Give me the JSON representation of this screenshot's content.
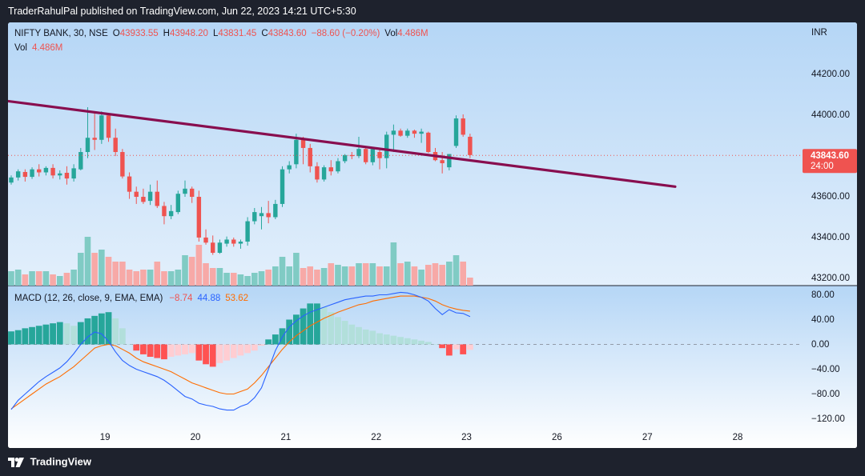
{
  "header": {
    "published_line": "TraderRahulPal published on TradingView.com, Jun 22, 2023 14:21 UTC+5:30"
  },
  "legend": {
    "symbol": "NIFTY BANK, 30, NSE",
    "o_label": "O",
    "o_value": "43933.55",
    "h_label": "H",
    "h_value": "43948.20",
    "l_label": "L",
    "l_value": "43831.45",
    "c_label": "C",
    "c_value": "43843.60",
    "change": "−88.60 (−0.20%)",
    "vol_label": "Vol",
    "vol_value": "4.486M",
    "vol_row_label": "Vol",
    "vol_row_value": "4.486M",
    "currency": "INR"
  },
  "macd_legend": {
    "label": "MACD (12, 26, close, 9, EMA, EMA)",
    "hist_value": "−8.74",
    "macd_value": "44.88",
    "signal_value": "53.62"
  },
  "price_axis": {
    "ticks": [
      "44200.00",
      "44000.00",
      "43600.00",
      "43400.00",
      "43200.00"
    ],
    "last_price": "43843.60",
    "countdown": "24:00"
  },
  "macd_axis": {
    "ticks": [
      "80.00",
      "40.00",
      "0.00",
      "−40.00",
      "−80.00",
      "−120.00"
    ]
  },
  "time_axis": {
    "ticks": [
      "19",
      "20",
      "21",
      "22",
      "23",
      "26",
      "27",
      "28"
    ]
  },
  "colors": {
    "up": "#26a69a",
    "down": "#ef5350",
    "trendline": "#880e4f",
    "macd_line": "#2962ff",
    "signal_line": "#ff6d00",
    "bg_top": "#b2d4f5",
    "bg_bottom": "#ffffff"
  },
  "footer": {
    "brand": "TradingView"
  },
  "chart_data": {
    "type": "candlestick",
    "symbol": "NIFTY BANK",
    "interval": "30",
    "exchange": "NSE",
    "currency": "INR",
    "ylim": [
      43180,
      44300
    ],
    "last_price": 43843.6,
    "day_labels": [
      {
        "label": "19",
        "bar": 13.5
      },
      {
        "label": "20",
        "bar": 26.5
      },
      {
        "label": "21",
        "bar": 39.5
      },
      {
        "label": "22",
        "bar": 52.5
      },
      {
        "label": "23",
        "bar": 65.5
      },
      {
        "label": "26",
        "bar": 78.5
      },
      {
        "label": "27",
        "bar": 91.5
      },
      {
        "label": "28",
        "bar": 104.5
      }
    ],
    "candles": [
      {
        "o": 43710,
        "h": 43745,
        "l": 43700,
        "c": 43735
      },
      {
        "o": 43735,
        "h": 43775,
        "l": 43720,
        "c": 43765
      },
      {
        "o": 43762,
        "h": 43775,
        "l": 43715,
        "c": 43738
      },
      {
        "o": 43738,
        "h": 43785,
        "l": 43728,
        "c": 43775
      },
      {
        "o": 43775,
        "h": 43800,
        "l": 43740,
        "c": 43760
      },
      {
        "o": 43760,
        "h": 43790,
        "l": 43745,
        "c": 43782
      },
      {
        "o": 43782,
        "h": 43800,
        "l": 43730,
        "c": 43745
      },
      {
        "o": 43745,
        "h": 43770,
        "l": 43725,
        "c": 43755
      },
      {
        "o": 43758,
        "h": 43790,
        "l": 43700,
        "c": 43730
      },
      {
        "o": 43730,
        "h": 43800,
        "l": 43715,
        "c": 43780
      },
      {
        "o": 43775,
        "h": 43880,
        "l": 43770,
        "c": 43860
      },
      {
        "o": 43860,
        "h": 44080,
        "l": 43830,
        "c": 43930
      },
      {
        "o": 43930,
        "h": 44050,
        "l": 43870,
        "c": 43920
      },
      {
        "o": 43920,
        "h": 44060,
        "l": 43900,
        "c": 44040
      },
      {
        "o": 44040,
        "h": 44045,
        "l": 43910,
        "c": 43930
      },
      {
        "o": 43930,
        "h": 43975,
        "l": 43840,
        "c": 43860
      },
      {
        "o": 43860,
        "h": 43875,
        "l": 43730,
        "c": 43740
      },
      {
        "o": 43740,
        "h": 43760,
        "l": 43630,
        "c": 43665
      },
      {
        "o": 43665,
        "h": 43690,
        "l": 43605,
        "c": 43640
      },
      {
        "o": 43640,
        "h": 43680,
        "l": 43605,
        "c": 43615
      },
      {
        "o": 43620,
        "h": 43700,
        "l": 43600,
        "c": 43665
      },
      {
        "o": 43665,
        "h": 43720,
        "l": 43585,
        "c": 43595
      },
      {
        "o": 43595,
        "h": 43615,
        "l": 43505,
        "c": 43545
      },
      {
        "o": 43545,
        "h": 43600,
        "l": 43530,
        "c": 43570
      },
      {
        "o": 43565,
        "h": 43670,
        "l": 43555,
        "c": 43655
      },
      {
        "o": 43655,
        "h": 43720,
        "l": 43640,
        "c": 43680
      },
      {
        "o": 43680,
        "h": 43690,
        "l": 43610,
        "c": 43640
      },
      {
        "o": 43640,
        "h": 43670,
        "l": 43420,
        "c": 43440
      },
      {
        "o": 43440,
        "h": 43480,
        "l": 43405,
        "c": 43415
      },
      {
        "o": 43415,
        "h": 43450,
        "l": 43355,
        "c": 43365
      },
      {
        "o": 43365,
        "h": 43430,
        "l": 43360,
        "c": 43415
      },
      {
        "o": 43410,
        "h": 43445,
        "l": 43395,
        "c": 43430
      },
      {
        "o": 43430,
        "h": 43440,
        "l": 43395,
        "c": 43410
      },
      {
        "o": 43410,
        "h": 43430,
        "l": 43385,
        "c": 43420
      },
      {
        "o": 43420,
        "h": 43540,
        "l": 43400,
        "c": 43520
      },
      {
        "o": 43520,
        "h": 43585,
        "l": 43505,
        "c": 43565
      },
      {
        "o": 43545,
        "h": 43590,
        "l": 43480,
        "c": 43560
      },
      {
        "o": 43560,
        "h": 43620,
        "l": 43510,
        "c": 43540
      },
      {
        "o": 43540,
        "h": 43625,
        "l": 43530,
        "c": 43605
      },
      {
        "o": 43605,
        "h": 43790,
        "l": 43590,
        "c": 43775
      },
      {
        "o": 43775,
        "h": 43815,
        "l": 43755,
        "c": 43795
      },
      {
        "o": 43800,
        "h": 43950,
        "l": 43780,
        "c": 43920
      },
      {
        "o": 43920,
        "h": 43935,
        "l": 43800,
        "c": 43880
      },
      {
        "o": 43880,
        "h": 43900,
        "l": 43760,
        "c": 43790
      },
      {
        "o": 43790,
        "h": 43810,
        "l": 43710,
        "c": 43725
      },
      {
        "o": 43725,
        "h": 43795,
        "l": 43715,
        "c": 43785
      },
      {
        "o": 43785,
        "h": 43820,
        "l": 43745,
        "c": 43765
      },
      {
        "o": 43765,
        "h": 43830,
        "l": 43755,
        "c": 43815
      },
      {
        "o": 43815,
        "h": 43850,
        "l": 43805,
        "c": 43845
      },
      {
        "o": 43845,
        "h": 43860,
        "l": 43825,
        "c": 43840
      },
      {
        "o": 43840,
        "h": 43935,
        "l": 43830,
        "c": 43875
      },
      {
        "o": 43875,
        "h": 43880,
        "l": 43800,
        "c": 43810
      },
      {
        "o": 43810,
        "h": 43880,
        "l": 43795,
        "c": 43875
      },
      {
        "o": 43860,
        "h": 43880,
        "l": 43775,
        "c": 43830
      },
      {
        "o": 43830,
        "h": 43960,
        "l": 43780,
        "c": 43945
      },
      {
        "o": 43945,
        "h": 43995,
        "l": 43860,
        "c": 43965
      },
      {
        "o": 43965,
        "h": 43975,
        "l": 43935,
        "c": 43940
      },
      {
        "o": 43940,
        "h": 43975,
        "l": 43930,
        "c": 43965
      },
      {
        "o": 43965,
        "h": 43970,
        "l": 43930,
        "c": 43950
      },
      {
        "o": 43950,
        "h": 43975,
        "l": 43905,
        "c": 43960
      },
      {
        "o": 43955,
        "h": 43960,
        "l": 43855,
        "c": 43860
      },
      {
        "o": 43860,
        "h": 43880,
        "l": 43815,
        "c": 43820
      },
      {
        "o": 43820,
        "h": 43860,
        "l": 43755,
        "c": 43805
      },
      {
        "o": 43785,
        "h": 43850,
        "l": 43770,
        "c": 43850
      },
      {
        "o": 43890,
        "h": 44040,
        "l": 43880,
        "c": 44025
      },
      {
        "o": 44025,
        "h": 44045,
        "l": 43935,
        "c": 43945
      },
      {
        "o": 43935,
        "h": 43950,
        "l": 43830,
        "c": 43845
      }
    ],
    "volume": [
      0.18,
      0.2,
      0.14,
      0.18,
      0.18,
      0.18,
      0.14,
      0.12,
      0.16,
      0.2,
      0.41,
      0.61,
      0.41,
      0.45,
      0.36,
      0.3,
      0.3,
      0.2,
      0.18,
      0.2,
      0.2,
      0.3,
      0.18,
      0.18,
      0.2,
      0.38,
      0.36,
      0.51,
      0.28,
      0.22,
      0.22,
      0.16,
      0.16,
      0.14,
      0.12,
      0.16,
      0.18,
      0.2,
      0.24,
      0.36,
      0.24,
      0.41,
      0.22,
      0.24,
      0.2,
      0.22,
      0.28,
      0.26,
      0.24,
      0.24,
      0.28,
      0.28,
      0.28,
      0.24,
      0.24,
      0.54,
      0.28,
      0.3,
      0.24,
      0.2,
      0.26,
      0.28,
      0.26,
      0.3,
      0.38,
      0.3,
      0.1
    ],
    "trendline": [
      {
        "bar": -0.5,
        "price": 44110
      },
      {
        "bar": 95.5,
        "price": 43690
      }
    ],
    "macd": {
      "params": "12, 26, close, 9, EMA, EMA",
      "ylim": [
        -140,
        90
      ],
      "histogram": [
        21,
        23,
        26,
        28,
        30,
        32,
        34,
        36,
        34,
        30,
        36,
        42,
        46,
        50,
        52,
        42,
        26,
        0,
        -10,
        -16,
        -20,
        -22,
        -24,
        -20,
        -18,
        -16,
        -14,
        -26,
        -32,
        -36,
        -30,
        -26,
        -22,
        -18,
        -14,
        -10,
        -2,
        8,
        16,
        26,
        40,
        48,
        58,
        66,
        66,
        60,
        52,
        44,
        38,
        32,
        28,
        24,
        22,
        18,
        16,
        14,
        12,
        10,
        8,
        6,
        4,
        0,
        -6,
        -18,
        -8,
        -16,
        -8.74
      ],
      "macd_line": [
        -105,
        -90,
        -80,
        -70,
        -60,
        -52,
        -45,
        -38,
        -28,
        -15,
        0,
        12,
        20,
        17,
        5,
        -12,
        -26,
        -34,
        -40,
        -44,
        -48,
        -52,
        -58,
        -66,
        -75,
        -84,
        -88,
        -95,
        -98,
        -100,
        -104,
        -106,
        -106,
        -100,
        -96,
        -86,
        -70,
        -40,
        -10,
        12,
        28,
        38,
        46,
        52,
        56,
        60,
        64,
        68,
        72,
        74,
        76,
        78,
        78,
        80,
        80,
        82,
        84,
        83,
        80,
        76,
        70,
        58,
        48,
        56,
        51,
        50,
        44.88
      ],
      "signal_line": [
        -104,
        -96,
        -88,
        -80,
        -72,
        -64,
        -58,
        -52,
        -44,
        -36,
        -26,
        -16,
        -6,
        -2,
        0,
        -2,
        -8,
        -14,
        -22,
        -28,
        -32,
        -36,
        -40,
        -44,
        -50,
        -56,
        -62,
        -66,
        -70,
        -74,
        -78,
        -80,
        -80,
        -76,
        -72,
        -62,
        -50,
        -36,
        -22,
        -8,
        4,
        14,
        22,
        30,
        36,
        42,
        47,
        52,
        56,
        60,
        64,
        66,
        70,
        72,
        74,
        76,
        78,
        78,
        78,
        76,
        74,
        70,
        64,
        60,
        57,
        55,
        53.62
      ]
    }
  }
}
